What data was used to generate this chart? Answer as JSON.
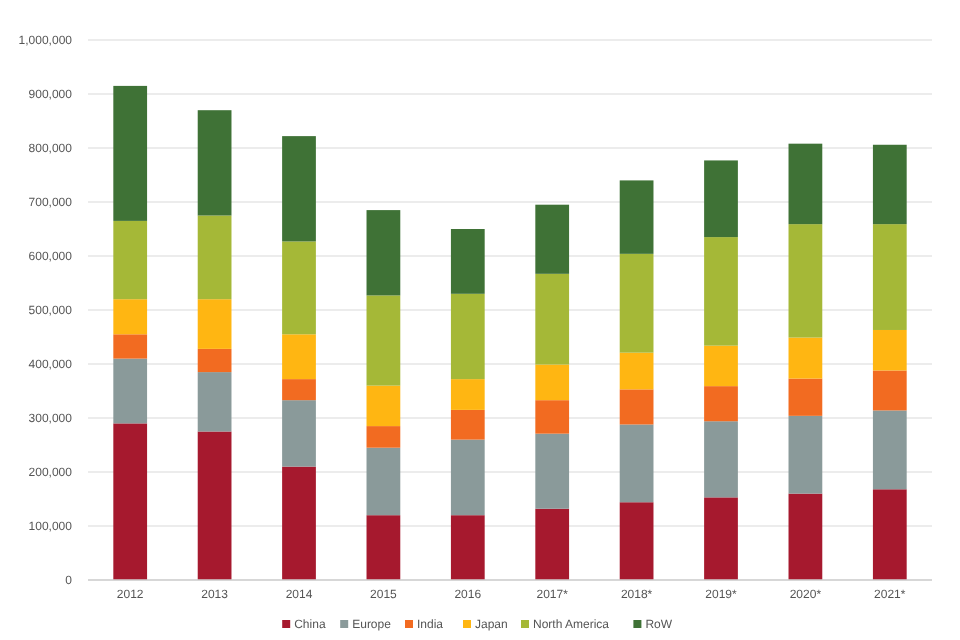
{
  "chart_data": {
    "type": "bar",
    "stacked": true,
    "categories": [
      "2012",
      "2013",
      "2014",
      "2015",
      "2016",
      "2017*",
      "2018*",
      "2019*",
      "2020*",
      "2021*"
    ],
    "series": [
      {
        "name": "China",
        "color": "#a6192e",
        "values": [
          290000,
          275000,
          210000,
          120000,
          120000,
          132000,
          144000,
          153000,
          160000,
          168000
        ]
      },
      {
        "name": "Europe",
        "color": "#8a9a9a",
        "values": [
          120000,
          110000,
          123000,
          125000,
          140000,
          139000,
          144000,
          141000,
          144000,
          146000
        ]
      },
      {
        "name": "India",
        "color": "#f26b21",
        "values": [
          45000,
          43000,
          39000,
          40000,
          55000,
          62000,
          65000,
          65000,
          69000,
          74000
        ]
      },
      {
        "name": "Japan",
        "color": "#ffb612",
        "values": [
          65000,
          92000,
          83000,
          75000,
          57000,
          66000,
          68000,
          75000,
          76000,
          75000
        ]
      },
      {
        "name": "North America",
        "color": "#a5b837",
        "values": [
          145000,
          155000,
          172000,
          167000,
          158000,
          168000,
          183000,
          201000,
          210000,
          196000
        ]
      },
      {
        "name": "RoW",
        "color": "#3f7236",
        "values": [
          250000,
          195000,
          195000,
          158000,
          120000,
          128000,
          136000,
          142000,
          149000,
          147000
        ]
      }
    ],
    "ylim": [
      0,
      1000000
    ],
    "yticks": [
      {
        "value": 0,
        "label": "0"
      },
      {
        "value": 100000,
        "label": "100,000"
      },
      {
        "value": 200000,
        "label": "200,000"
      },
      {
        "value": 300000,
        "label": "300,000"
      },
      {
        "value": 400000,
        "label": "400,000"
      },
      {
        "value": 500000,
        "label": "500,000"
      },
      {
        "value": 600000,
        "label": "600,000"
      },
      {
        "value": 700000,
        "label": "700,000"
      },
      {
        "value": 800000,
        "label": "800,000"
      },
      {
        "value": 900000,
        "label": "900,000"
      },
      {
        "value": 1000000,
        "label": "1,000,000"
      }
    ],
    "grid": "y",
    "legend": "bottom"
  }
}
